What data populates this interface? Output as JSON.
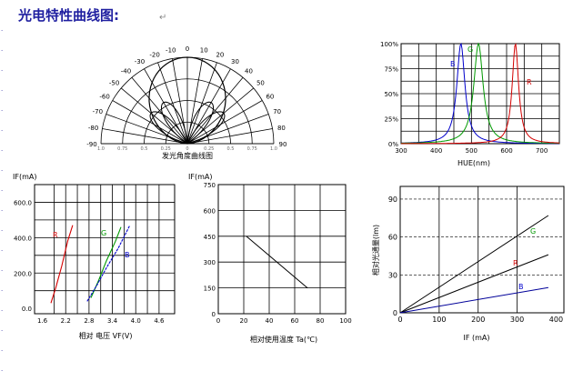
{
  "doc": {
    "title": "光电特性曲线图:",
    "return_mark": "↵"
  },
  "colors": {
    "title": "#1f1fa0",
    "R": "#d40000",
    "G": "#009900",
    "B": "#0000cc"
  },
  "chart_data": [
    {
      "id": "polar",
      "type": "line",
      "angle_labels_left": [
        "0",
        "-10",
        "-20",
        "-30",
        "-40",
        "-50",
        "-60",
        "-70",
        "-80",
        "-90"
      ],
      "angle_labels_right": [
        "10",
        "20",
        "30",
        "40",
        "50",
        "60",
        "70",
        "80",
        "90"
      ],
      "radial_labels": [
        "1.0",
        "0.75",
        "0.5",
        "0.25",
        "0",
        "0.25",
        "0.5",
        "0.75",
        "1.0"
      ],
      "xlabel": "发光角度曲线图"
    },
    {
      "id": "hue",
      "type": "line",
      "ylabel": "",
      "xlabel": "HUE(nm)",
      "x_ticks": [
        "300",
        "400",
        "500",
        "600",
        "700"
      ],
      "y_ticks": [
        "0%",
        "25%",
        "50%",
        "75%",
        "100%"
      ],
      "xlim": [
        300,
        750
      ],
      "ylim": [
        0,
        100
      ],
      "series": [
        {
          "name": "B",
          "peak": 470,
          "width": 14
        },
        {
          "name": "G",
          "peak": 520,
          "width": 16
        },
        {
          "name": "R",
          "peak": 625,
          "width": 11
        }
      ]
    },
    {
      "id": "iv",
      "type": "line",
      "ylabel": "IF(mA)",
      "xlabel": "相对 电压 VF(V)",
      "x_ticks": [
        "1.6",
        "2.2",
        "2.8",
        "3.4",
        "4.0",
        "4.6"
      ],
      "y_ticks": [
        "0.0",
        "200.0",
        "400.0",
        "600.0"
      ],
      "xlim": [
        1.4,
        5.0
      ],
      "ylim": [
        -30,
        700
      ],
      "series": [
        {
          "name": "R",
          "points": [
            [
              1.82,
              30
            ],
            [
              1.95,
              120
            ],
            [
              2.1,
              240
            ],
            [
              2.25,
              380
            ],
            [
              2.38,
              470
            ]
          ]
        },
        {
          "name": "G",
          "points": [
            [
              2.85,
              60
            ],
            [
              3.05,
              160
            ],
            [
              3.25,
              270
            ],
            [
              3.48,
              380
            ],
            [
              3.62,
              460
            ]
          ]
        },
        {
          "name": "B",
          "points": [
            [
              2.75,
              40
            ],
            [
              3.0,
              130
            ],
            [
              3.25,
              230
            ],
            [
              3.55,
              340
            ],
            [
              3.85,
              470
            ]
          ]
        }
      ]
    },
    {
      "id": "temp",
      "type": "line",
      "ylabel": "IF(mA)",
      "xlabel": "相对使用温度 Ta(℃)",
      "x_ticks": [
        "0",
        "20",
        "40",
        "60",
        "80",
        "100"
      ],
      "y_ticks": [
        "0",
        "150",
        "300",
        "450",
        "600",
        "750"
      ],
      "xlim": [
        0,
        100
      ],
      "ylim": [
        0,
        750
      ],
      "series": [
        {
          "name": "",
          "points": [
            [
              22,
              450
            ],
            [
              70,
              150
            ]
          ]
        }
      ]
    },
    {
      "id": "lum",
      "type": "line",
      "ylabel": "相对光通量(lm)",
      "xlabel": "IF (mA)",
      "x_ticks": [
        "0",
        "100",
        "200",
        "300",
        "400"
      ],
      "y_ticks": [
        "0",
        "30",
        "60",
        "90"
      ],
      "xlim": [
        0,
        420
      ],
      "ylim": [
        0,
        100
      ],
      "series": [
        {
          "name": "G",
          "points": [
            [
              0,
              0
            ],
            [
              380,
              77
            ]
          ]
        },
        {
          "name": "R",
          "points": [
            [
              0,
              0
            ],
            [
              380,
              46
            ]
          ]
        },
        {
          "name": "B",
          "points": [
            [
              0,
              0
            ],
            [
              380,
              20
            ]
          ]
        }
      ]
    }
  ]
}
